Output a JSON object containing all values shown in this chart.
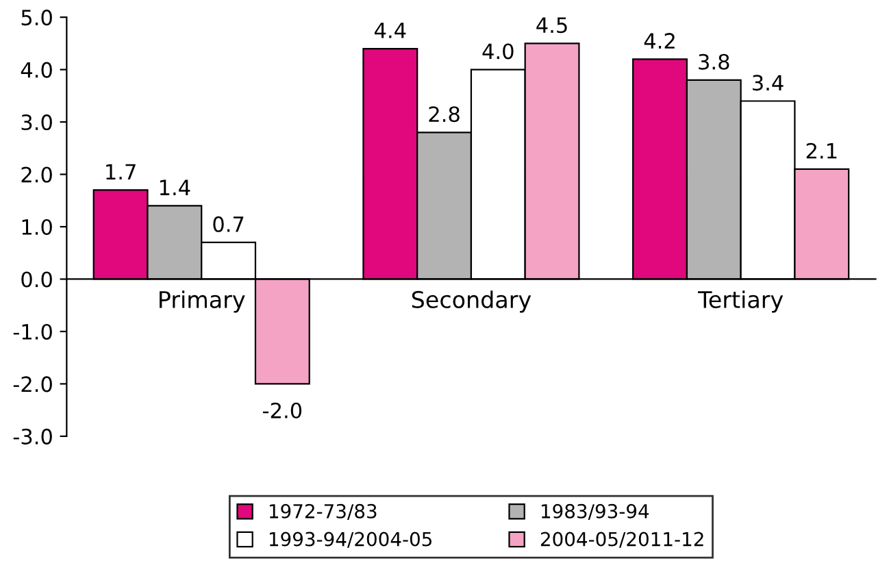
{
  "chart_data": {
    "type": "bar",
    "categories": [
      "Primary",
      "Secondary",
      "Tertiary"
    ],
    "series": [
      {
        "name": "1972-73/83",
        "color": "#e0087c",
        "values": [
          1.7,
          4.4,
          4.2
        ],
        "value_labels": [
          "1.7",
          "4.4",
          "4.2"
        ]
      },
      {
        "name": "1983/93-94",
        "color": "#b3b3b3",
        "values": [
          1.4,
          2.8,
          3.8
        ],
        "value_labels": [
          "1.4",
          "2.8",
          "3.8"
        ]
      },
      {
        "name": "1993-94/2004-05",
        "color": "#ffffff",
        "values": [
          0.7,
          4.0,
          3.4
        ],
        "value_labels": [
          "0.7",
          "4.0",
          "3.4"
        ]
      },
      {
        "name": "2004-05/2011-12",
        "color": "#f4a3c4",
        "values": [
          -2.0,
          4.5,
          2.1
        ],
        "value_labels": [
          "-2.0",
          "4.5",
          "2.1"
        ]
      }
    ],
    "ylim": [
      -3,
      5
    ],
    "yticks": [
      {
        "value": -3,
        "label": "-3.0"
      },
      {
        "value": -2,
        "label": "-2.0"
      },
      {
        "value": -1,
        "label": "-1.0"
      },
      {
        "value": 0,
        "label": "0.0"
      },
      {
        "value": 1,
        "label": "1.0"
      },
      {
        "value": 2,
        "label": "2.0"
      },
      {
        "value": 3,
        "label": "3.0"
      },
      {
        "value": 4,
        "label": "4.0"
      },
      {
        "value": 5,
        "label": "5.0"
      }
    ],
    "grid": false,
    "legend": "bottom"
  }
}
